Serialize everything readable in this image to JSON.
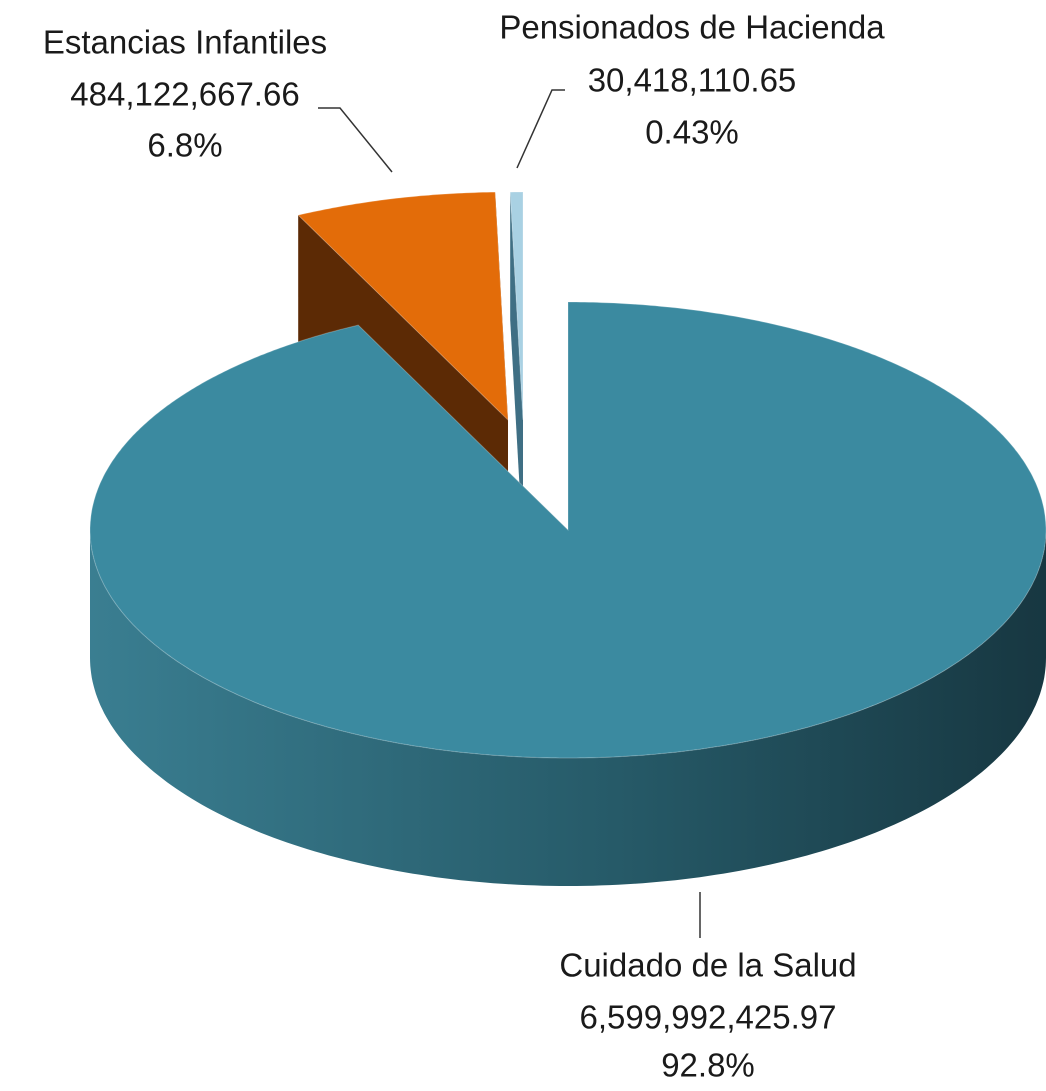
{
  "chart_data": {
    "type": "pie",
    "categories": [
      "Cuidado de la Salud",
      "Estancias Infantiles",
      "Pensionados de Hacienda"
    ],
    "values": [
      6599992425.97,
      484122667.66,
      30418110.65
    ],
    "value_labels": [
      "6,599,992,425.97",
      "484,122,667.66",
      "30,418,110.65"
    ],
    "percent_labels": [
      "92.8%",
      "6.8%",
      "0.43%"
    ],
    "colors": [
      "#3b8aa0",
      "#e36c09",
      "#a9d1e3"
    ]
  }
}
